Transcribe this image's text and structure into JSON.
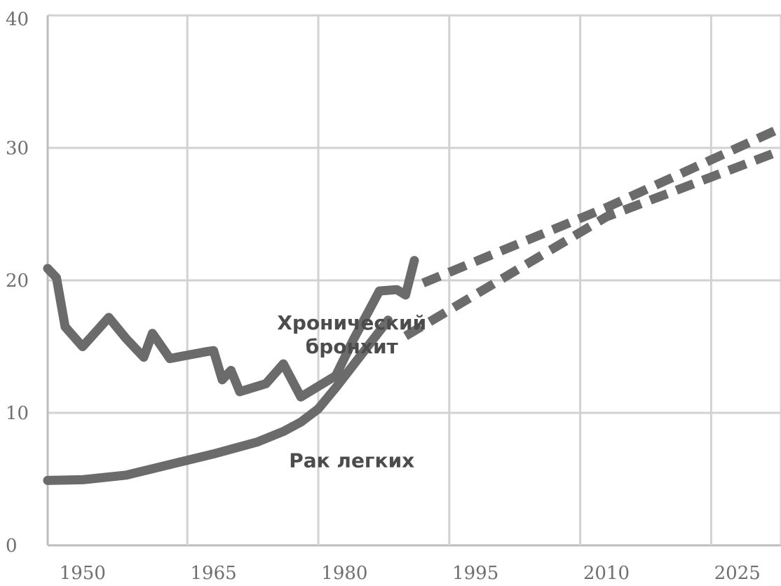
{
  "chart_data": {
    "type": "line",
    "xlim": [
      1946,
      2030
    ],
    "ylim": [
      0,
      40
    ],
    "grid": true,
    "x_ticks": [
      1950,
      1965,
      1980,
      1995,
      2010,
      2025
    ],
    "x_tick_labels": [
      "1950",
      "1965",
      "1980",
      "1995",
      "2010",
      "2025"
    ],
    "y_ticks": [
      0,
      10,
      20,
      30,
      40
    ],
    "y_tick_labels": [
      "0",
      "10",
      "20",
      "30",
      "40"
    ],
    "series_label_lines": [
      [
        "Хронический",
        "бронхит"
      ],
      [
        "Рак легких"
      ]
    ],
    "series": [
      {
        "name": "Хронический бронхит",
        "color": "#6b6b6b",
        "label_anchor": [
          1972,
          16.3
        ],
        "values": [
          [
            1946,
            20.9
          ],
          [
            1947,
            20.2
          ],
          [
            1948,
            16.5
          ],
          [
            1950,
            15.0
          ],
          [
            1953,
            17.2
          ],
          [
            1955,
            15.6
          ],
          [
            1957,
            14.2
          ],
          [
            1958,
            16.0
          ],
          [
            1960,
            14.1
          ],
          [
            1964,
            14.6
          ],
          [
            1965,
            14.7
          ],
          [
            1966,
            12.5
          ],
          [
            1967,
            13.2
          ],
          [
            1968,
            11.6
          ],
          [
            1971,
            12.2
          ],
          [
            1973,
            13.7
          ],
          [
            1975,
            11.2
          ],
          [
            1979,
            12.8
          ],
          [
            1981,
            15.5
          ],
          [
            1984,
            19.2
          ],
          [
            1986,
            19.3
          ],
          [
            1987,
            18.9
          ],
          [
            1988,
            21.5
          ]
        ],
        "projection": [
          [
            1989,
            19.8
          ],
          [
            2010,
            25.5
          ],
          [
            2030,
            31.5
          ]
        ]
      },
      {
        "name": "Рак легких",
        "color": "#6b6b6b",
        "label_anchor": [
          1972,
          5.9
        ],
        "values": [
          [
            1946,
            4.9
          ],
          [
            1950,
            4.95
          ],
          [
            1955,
            5.3
          ],
          [
            1960,
            6.1
          ],
          [
            1965,
            6.9
          ],
          [
            1970,
            7.8
          ],
          [
            1973,
            8.6
          ],
          [
            1975,
            9.3
          ],
          [
            1977,
            10.3
          ],
          [
            1979,
            11.9
          ],
          [
            1981,
            13.6
          ],
          [
            1983,
            15.3
          ],
          [
            1985,
            17.0
          ]
        ],
        "projection": [
          [
            1987,
            15.8
          ],
          [
            2010,
            24.8
          ],
          [
            2030,
            29.8
          ]
        ]
      }
    ]
  }
}
